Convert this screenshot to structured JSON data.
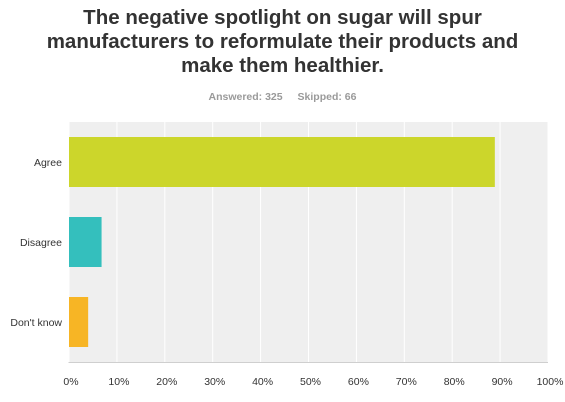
{
  "chart_data": {
    "type": "bar",
    "orientation": "horizontal",
    "title": "The negative spotlight on sugar will spur manufacturers to reformulate their products and make them healthier.",
    "answered_label": "Answered: 325",
    "skipped_label": "Skipped: 66",
    "categories": [
      "Agree",
      "Disagree",
      "Don't know"
    ],
    "values": [
      88.9,
      6.8,
      4.0
    ],
    "value_unit": "%",
    "xlim": [
      0,
      100
    ],
    "x_ticks": [
      0,
      10,
      20,
      30,
      40,
      50,
      60,
      70,
      80,
      90,
      100
    ],
    "x_tick_labels": [
      "0%",
      "10%",
      "20%",
      "30%",
      "40%",
      "50%",
      "60%",
      "70%",
      "80%",
      "90%",
      "100%"
    ],
    "grid": true,
    "legend": "none",
    "colors": [
      "#ccd62b",
      "#34bfbd",
      "#f7b525"
    ],
    "plot_background": "#efefef",
    "grid_color": "#ffffff"
  }
}
